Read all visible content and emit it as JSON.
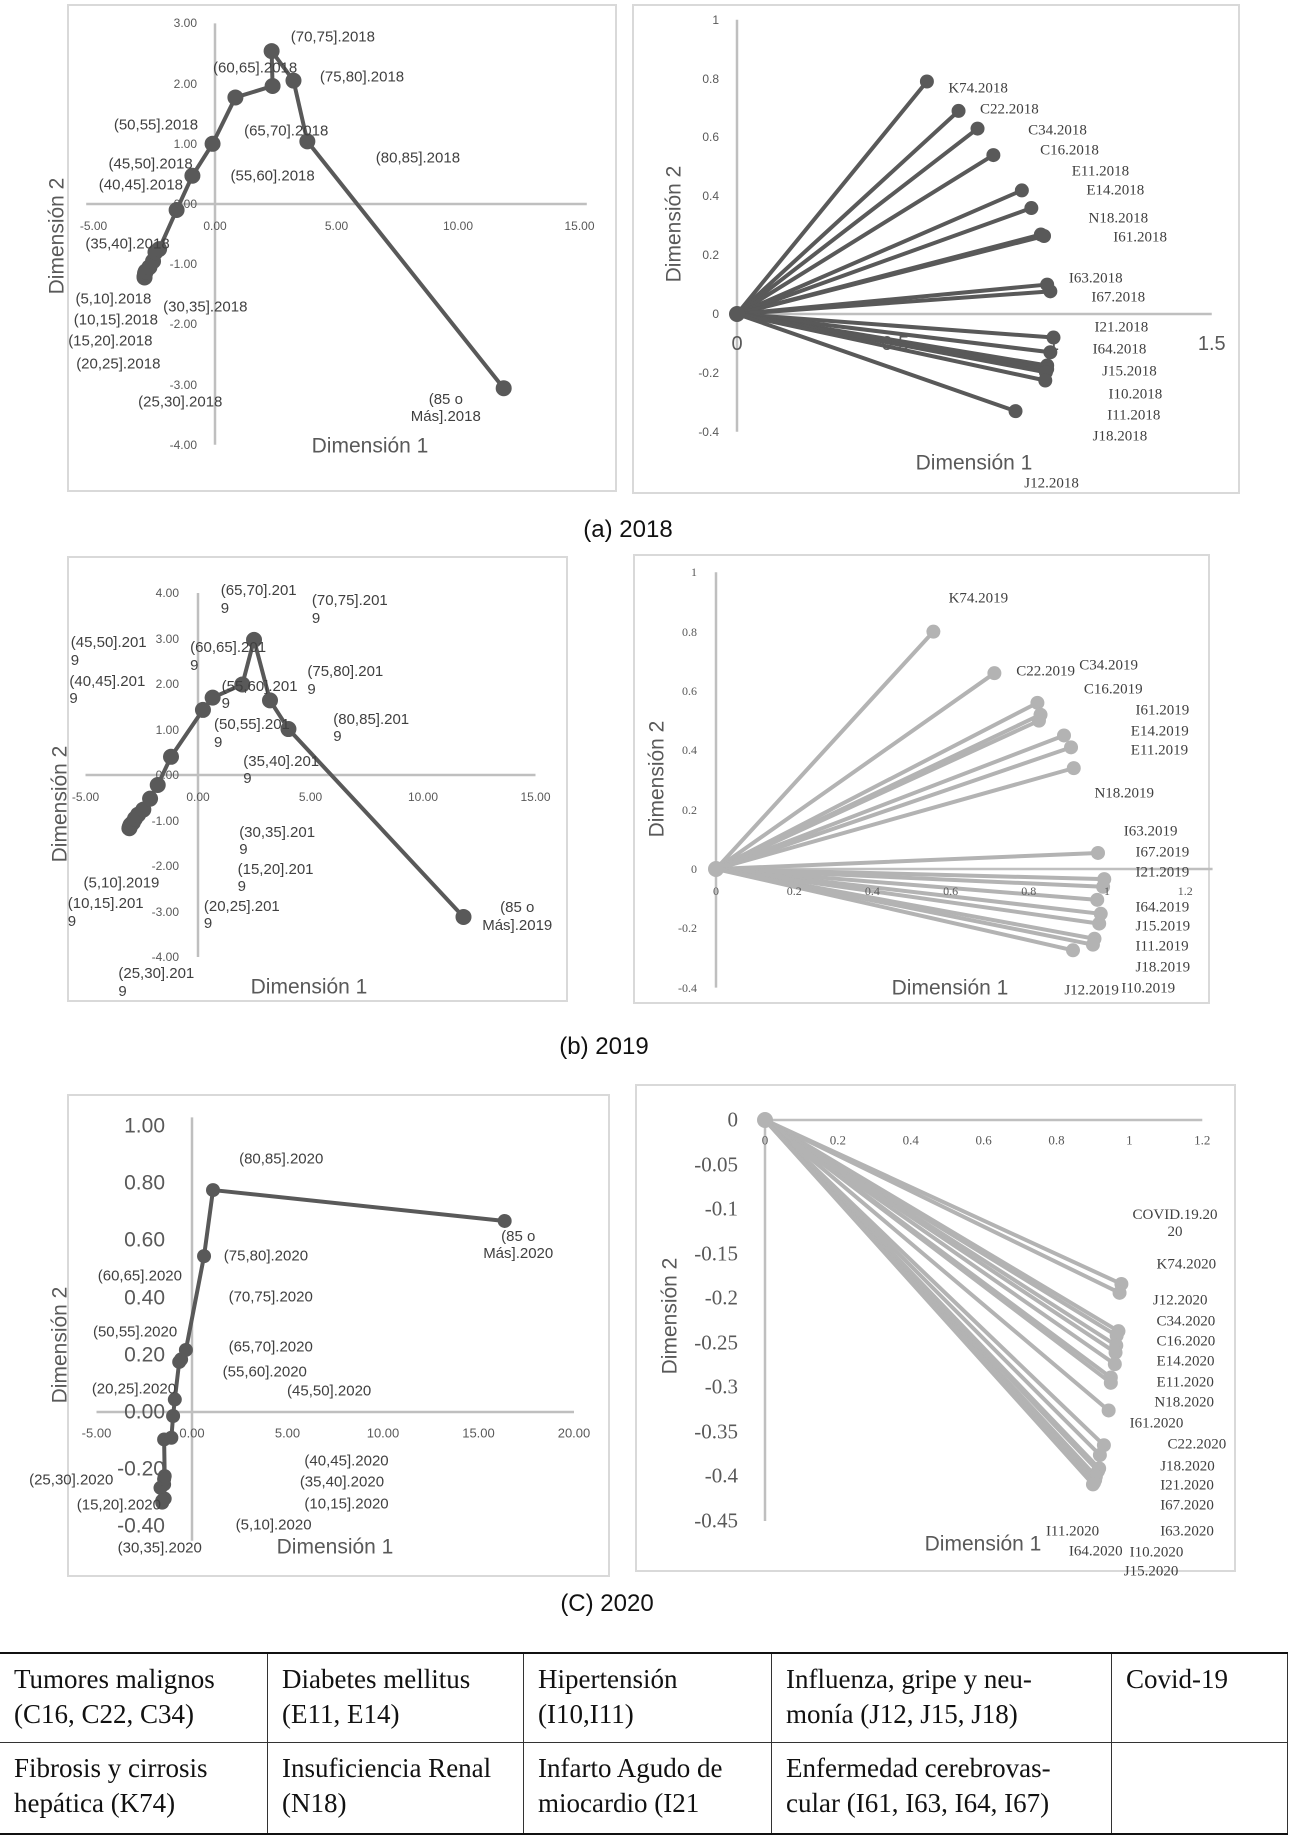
{
  "captions": [
    "(a) 2018",
    "(b) 2019",
    "(C) 2020"
  ],
  "chart_data": [
    {
      "type": "line",
      "xlabel": "Dimensión 1",
      "ylabel": "Dimensión 2",
      "xlim": [
        -5,
        15
      ],
      "ylim": [
        -4,
        3
      ],
      "grid": false,
      "xticks": [
        "-5.00",
        "0.00",
        "5.00",
        "10.00",
        "15.00"
      ],
      "yticks": [
        "3.00",
        "2.00",
        "1.00",
        "0.00",
        "-1.00",
        "-2.00",
        "-3.00",
        "-4.00"
      ],
      "color": "#595959",
      "connection": "sequential",
      "points": [
        {
          "label": "(5,10].2018",
          "x": -2.9,
          "y": -1.22
        },
        {
          "label": "(10,15].2018",
          "x": -2.9,
          "y": -1.2
        },
        {
          "label": "(15,20].2018",
          "x": -2.88,
          "y": -1.15
        },
        {
          "label": "(20,25].2018",
          "x": -2.85,
          "y": -1.12
        },
        {
          "label": "(25,30].2018",
          "x": -2.7,
          "y": -1.05
        },
        {
          "label": "(30,35].2018",
          "x": -2.55,
          "y": -0.95
        },
        {
          "label": "(35,40].2018",
          "x": -2.45,
          "y": -0.8
        },
        {
          "label": "(40,45].2018",
          "x": -2.3,
          "y": -0.75
        },
        {
          "label": "(45,50].2018",
          "x": -1.58,
          "y": -0.1
        },
        {
          "label": "(50,55].2018",
          "x": -0.93,
          "y": 0.47
        },
        {
          "label": "(55,60].2018",
          "x": -0.1,
          "y": 1.0
        },
        {
          "label": "(60,65].2018",
          "x": 0.84,
          "y": 1.77
        },
        {
          "label": "(65,70].2018",
          "x": 2.37,
          "y": 1.96
        },
        {
          "label": "(70,75].2018",
          "x": 2.33,
          "y": 2.54
        },
        {
          "label": "(75,80].2018",
          "x": 3.23,
          "y": 2.05
        },
        {
          "label": "(80,85].2018",
          "x": 3.8,
          "y": 1.04
        },
        {
          "label": "(85 o Más].2018",
          "x": 11.88,
          "y": -3.06
        }
      ]
    },
    {
      "type": "line",
      "xlabel": "Dimensión 1",
      "ylabel": "Dimensión 2",
      "xlim": [
        0,
        1.5
      ],
      "ylim": [
        -0.4,
        1
      ],
      "grid": false,
      "xticks": [
        "0",
        "0.5",
        "1",
        "1.5"
      ],
      "yticks": [
        "1",
        "0.8",
        "0.6",
        "0.4",
        "0.2",
        "0",
        "-0.2",
        "-0.4"
      ],
      "color": "#595959",
      "connection": "from-origin",
      "points": [
        {
          "label": "K74.2018",
          "x": 0.6,
          "y": 0.79
        },
        {
          "label": "C22.2018",
          "x": 0.7,
          "y": 0.69
        },
        {
          "label": "C34.2018",
          "x": 0.76,
          "y": 0.63
        },
        {
          "label": "C16.2018",
          "x": 0.81,
          "y": 0.54
        },
        {
          "label": "E11.2018",
          "x": 0.9,
          "y": 0.42
        },
        {
          "label": "E14.2018",
          "x": 0.93,
          "y": 0.36
        },
        {
          "label": "N18.2018",
          "x": 0.96,
          "y": 0.27
        },
        {
          "label": "I61.2018",
          "x": 0.97,
          "y": 0.265
        },
        {
          "label": "I63.2018",
          "x": 0.98,
          "y": 0.1
        },
        {
          "label": "I67.2018",
          "x": 0.99,
          "y": 0.077
        },
        {
          "label": "I21.2018",
          "x": 1.0,
          "y": -0.08
        },
        {
          "label": "I64.2018",
          "x": 0.99,
          "y": -0.13
        },
        {
          "label": "J15.2018",
          "x": 0.98,
          "y": -0.175
        },
        {
          "label": "I10.2018",
          "x": 0.98,
          "y": -0.187
        },
        {
          "label": "I11.2018",
          "x": 0.976,
          "y": -0.198
        },
        {
          "label": "J18.2018",
          "x": 0.974,
          "y": -0.226
        },
        {
          "label": "J12.2018",
          "x": 0.88,
          "y": -0.33
        }
      ]
    },
    {
      "type": "line",
      "xlabel": "Dimensión 1",
      "ylabel": "Dimensión 2",
      "xlim": [
        -5,
        15
      ],
      "ylim": [
        -4,
        4
      ],
      "grid": false,
      "xticks": [
        "-5.00",
        "0.00",
        "5.00",
        "10.00",
        "15.00"
      ],
      "yticks": [
        "4.00",
        "3.00",
        "2.00",
        "1.00",
        "0.00",
        "-1.00",
        "-2.00",
        "-3.00",
        "-4.00"
      ],
      "color": "#595959",
      "connection": "sequential",
      "points": [
        {
          "label": "(5,10].2019",
          "x": -3.05,
          "y": -1.17
        },
        {
          "label": "(10,15].2019",
          "x": -3.03,
          "y": -1.14
        },
        {
          "label": "(15,20].2019",
          "x": -3.0,
          "y": -1.1
        },
        {
          "label": "(20,25].2019",
          "x": -2.9,
          "y": -1.05
        },
        {
          "label": "(25,30].2019",
          "x": -2.8,
          "y": -0.96
        },
        {
          "label": "(30,35].2019",
          "x": -2.66,
          "y": -0.87
        },
        {
          "label": "(35,40].2019",
          "x": -2.43,
          "y": -0.76
        },
        {
          "label": "(40,45].2019",
          "x": -2.13,
          "y": -0.52
        },
        {
          "label": "(45,50].2019",
          "x": -1.79,
          "y": -0.22
        },
        {
          "label": "(50,55].2019",
          "x": -1.2,
          "y": 0.4
        },
        {
          "label": "(55,60].2019",
          "x": 0.22,
          "y": 1.43
        },
        {
          "label": "(60,65].2019",
          "x": 0.65,
          "y": 1.7
        },
        {
          "label": "(65,70].2019",
          "x": 1.97,
          "y": 1.99
        },
        {
          "label": "(70,75].2019",
          "x": 2.49,
          "y": 2.97
        },
        {
          "label": "(75,80].2019",
          "x": 3.2,
          "y": 1.64
        },
        {
          "label": "(80,85].2019",
          "x": 4.02,
          "y": 1.01
        },
        {
          "label": "(85 o Más].2019",
          "x": 11.8,
          "y": -3.12
        }
      ]
    },
    {
      "type": "line",
      "xlabel": "Dimensión 1",
      "ylabel": "Dimensión 2",
      "xlim": [
        0,
        1.2
      ],
      "ylim": [
        -0.4,
        1
      ],
      "grid": false,
      "xticks": [
        "0",
        "0.2",
        "0.4",
        "0.6",
        "0.8",
        "1",
        "1.2"
      ],
      "yticks": [
        "1",
        "0.8",
        "0.6",
        "0.4",
        "0.2",
        "0",
        "-0.2",
        "-0.4"
      ],
      "color": "#b3b3b3",
      "connection": "from-origin",
      "points": [
        {
          "label": "K74.2019",
          "x": 0.556,
          "y": 0.8
        },
        {
          "label": "C22.2019",
          "x": 0.712,
          "y": 0.66
        },
        {
          "label": "C34.2019",
          "x": 0.822,
          "y": 0.56
        },
        {
          "label": "C16.2019",
          "x": 0.83,
          "y": 0.52
        },
        {
          "label": "I61.2019",
          "x": 0.826,
          "y": 0.5
        },
        {
          "label": "E14.2019",
          "x": 0.89,
          "y": 0.45
        },
        {
          "label": "E11.2019",
          "x": 0.908,
          "y": 0.41
        },
        {
          "label": "N18.2019",
          "x": 0.915,
          "y": 0.34
        },
        {
          "label": "I63.2019",
          "x": 0.977,
          "y": 0.054
        },
        {
          "label": "I67.2019",
          "x": 0.993,
          "y": -0.034
        },
        {
          "label": "I21.2019",
          "x": 0.99,
          "y": -0.06
        },
        {
          "label": "I64.2019",
          "x": 0.975,
          "y": -0.104
        },
        {
          "label": "J15.2019",
          "x": 0.984,
          "y": -0.151
        },
        {
          "label": "I11.2019",
          "x": 0.98,
          "y": -0.184
        },
        {
          "label": "J18.2019",
          "x": 0.968,
          "y": -0.235
        },
        {
          "label": "I10.2019",
          "x": 0.964,
          "y": -0.255
        },
        {
          "label": "J12.2019",
          "x": 0.913,
          "y": -0.274
        }
      ]
    },
    {
      "type": "line",
      "xlabel": "Dimensión 1",
      "ylabel": "Dimensión 2",
      "xlim": [
        -5,
        20
      ],
      "ylim": [
        -0.4,
        1.0
      ],
      "grid": false,
      "xticks": [
        "-5.00",
        "0.00",
        "5.00",
        "10.00",
        "15.00",
        "20.00"
      ],
      "yticks": [
        "1.00",
        "0.80",
        "0.60",
        "0.40",
        "0.20",
        "0.00",
        "-0.20",
        "-0.40"
      ],
      "color": "#595959",
      "connection": "sequential",
      "points": [
        {
          "label": "(5,10].2020",
          "x": -1.43,
          "y": -0.303
        },
        {
          "label": "(10,15].2020",
          "x": -1.46,
          "y": -0.253
        },
        {
          "label": "(15,20].2020",
          "x": -1.56,
          "y": -0.317
        },
        {
          "label": "(20,25].2020",
          "x": -1.46,
          "y": -0.096
        },
        {
          "label": "(25,30].2020",
          "x": -1.65,
          "y": -0.265
        },
        {
          "label": "(30,35].2020",
          "x": -1.56,
          "y": -0.31
        },
        {
          "label": "(35,40].2020",
          "x": -1.46,
          "y": -0.235
        },
        {
          "label": "(40,45].2020",
          "x": -1.43,
          "y": -0.224
        },
        {
          "label": "(45,50].2020",
          "x": -1.08,
          "y": -0.09
        },
        {
          "label": "(50,55].2020",
          "x": -0.99,
          "y": -0.014
        },
        {
          "label": "(55,60].2020",
          "x": -0.9,
          "y": 0.044
        },
        {
          "label": "(60,65].2020",
          "x": -0.67,
          "y": 0.175
        },
        {
          "label": "(65,70].2020",
          "x": -0.57,
          "y": 0.184
        },
        {
          "label": "(70,75].2020",
          "x": -0.32,
          "y": 0.217
        },
        {
          "label": "(75,80].2020",
          "x": 0.63,
          "y": 0.545
        },
        {
          "label": "(80,85].2020",
          "x": 1.1,
          "y": 0.776
        },
        {
          "label": "(85 o Más].2020",
          "x": 16.37,
          "y": 0.668
        }
      ]
    },
    {
      "type": "line",
      "xlabel": "Dimensión 1",
      "ylabel": "Dimensión 2",
      "xlim": [
        0,
        1.2
      ],
      "ylim": [
        -0.45,
        0
      ],
      "grid": false,
      "xticks": [
        "0",
        "0.2",
        "0.4",
        "0.6",
        "0.8",
        "1",
        "1.2"
      ],
      "yticks": [
        "0",
        "-0.05",
        "-0.1",
        "-0.15",
        "-0.2",
        "-0.25",
        "-0.3",
        "-0.35",
        "-0.4",
        "-0.45"
      ],
      "color": "#b3b3b3",
      "connection": "from-origin",
      "points": [
        {
          "label": "COVID.19.2020",
          "x": 0.978,
          "y": -0.184
        },
        {
          "label": "K74.2020",
          "x": 0.973,
          "y": -0.194
        },
        {
          "label": "J12.2020",
          "x": 0.97,
          "y": -0.237
        },
        {
          "label": "C34.2020",
          "x": 0.965,
          "y": -0.242
        },
        {
          "label": "C16.2020",
          "x": 0.964,
          "y": -0.253
        },
        {
          "label": "E14.2020",
          "x": 0.962,
          "y": -0.261
        },
        {
          "label": "E11.2020",
          "x": 0.96,
          "y": -0.274
        },
        {
          "label": "N18.2020",
          "x": 0.949,
          "y": -0.289
        },
        {
          "label": "I61.2020",
          "x": 0.949,
          "y": -0.295
        },
        {
          "label": "C22.2020",
          "x": 0.943,
          "y": -0.326
        },
        {
          "label": "J18.2020",
          "x": 0.93,
          "y": -0.365
        },
        {
          "label": "I21.2020",
          "x": 0.919,
          "y": -0.376
        },
        {
          "label": "I67.2020",
          "x": 0.917,
          "y": -0.391
        },
        {
          "label": "I63.2020",
          "x": 0.914,
          "y": -0.394
        },
        {
          "label": "I10.2020",
          "x": 0.908,
          "y": -0.4
        },
        {
          "label": "J15.2020",
          "x": 0.906,
          "y": -0.404
        },
        {
          "label": "I64.2020",
          "x": 0.903,
          "y": -0.407
        },
        {
          "label": "I11.2020",
          "x": 0.9,
          "y": -0.409
        }
      ]
    }
  ],
  "legend_table": {
    "rows": [
      [
        "Tumores malignos (C16, C22, C34)",
        "Diabetes mellitus (E11, E14)",
        "Hipertensión (I10,I11)",
        "Influenza, gripe y neu-monía (J12, J15, J18)",
        "Covid-19"
      ],
      [
        "Fibrosis y cirrosis hepática (K74)",
        "Insuficiencia Renal (N18)",
        "Infarto Agudo de miocardio (I21",
        "Enfermedad cerebrovas-cular (I61, I63, I64, I67)",
        ""
      ]
    ]
  }
}
